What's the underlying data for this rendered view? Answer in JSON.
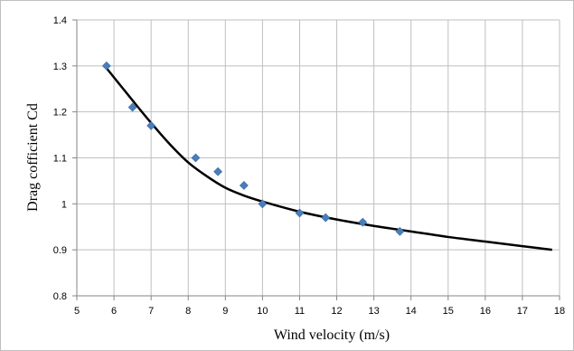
{
  "chart_data": {
    "type": "scatter",
    "title": "",
    "xlabel": "Wind velocity (m/s)",
    "ylabel": "Drag cofficient Cd",
    "xlim": [
      5,
      18
    ],
    "ylim": [
      0.8,
      1.4
    ],
    "xticks": [
      "5",
      "6",
      "7",
      "8",
      "9",
      "10",
      "11",
      "12",
      "13",
      "14",
      "15",
      "16",
      "17",
      "18"
    ],
    "yticks": [
      "0.8",
      "0.9",
      "1",
      "1.1",
      "1.2",
      "1.3",
      "1.4"
    ],
    "grid": true,
    "legend": "none",
    "series": [
      {
        "marker": "diamond",
        "color": "#4a7ebb",
        "points": [
          {
            "x": 5.8,
            "y": 1.3
          },
          {
            "x": 6.5,
            "y": 1.21
          },
          {
            "x": 7.0,
            "y": 1.17
          },
          {
            "x": 8.2,
            "y": 1.1
          },
          {
            "x": 8.8,
            "y": 1.07
          },
          {
            "x": 9.5,
            "y": 1.04
          },
          {
            "x": 10.0,
            "y": 1.0
          },
          {
            "x": 11.0,
            "y": 0.98
          },
          {
            "x": 11.7,
            "y": 0.97
          },
          {
            "x": 12.7,
            "y": 0.96
          },
          {
            "x": 13.7,
            "y": 0.94
          }
        ]
      },
      {
        "style": "trendline",
        "color": "#000000",
        "points": [
          {
            "x": 5.8,
            "y": 1.295
          },
          {
            "x": 6.5,
            "y": 1.225
          },
          {
            "x": 7.0,
            "y": 1.176
          },
          {
            "x": 7.5,
            "y": 1.13
          },
          {
            "x": 8.0,
            "y": 1.09
          },
          {
            "x": 8.5,
            "y": 1.06
          },
          {
            "x": 9.0,
            "y": 1.035
          },
          {
            "x": 9.5,
            "y": 1.018
          },
          {
            "x": 10.0,
            "y": 1.005
          },
          {
            "x": 11.0,
            "y": 0.983
          },
          {
            "x": 12.0,
            "y": 0.966
          },
          {
            "x": 13.0,
            "y": 0.952
          },
          {
            "x": 14.0,
            "y": 0.94
          },
          {
            "x": 15.0,
            "y": 0.928
          },
          {
            "x": 16.0,
            "y": 0.918
          },
          {
            "x": 17.0,
            "y": 0.908
          },
          {
            "x": 17.8,
            "y": 0.9
          }
        ]
      }
    ]
  }
}
